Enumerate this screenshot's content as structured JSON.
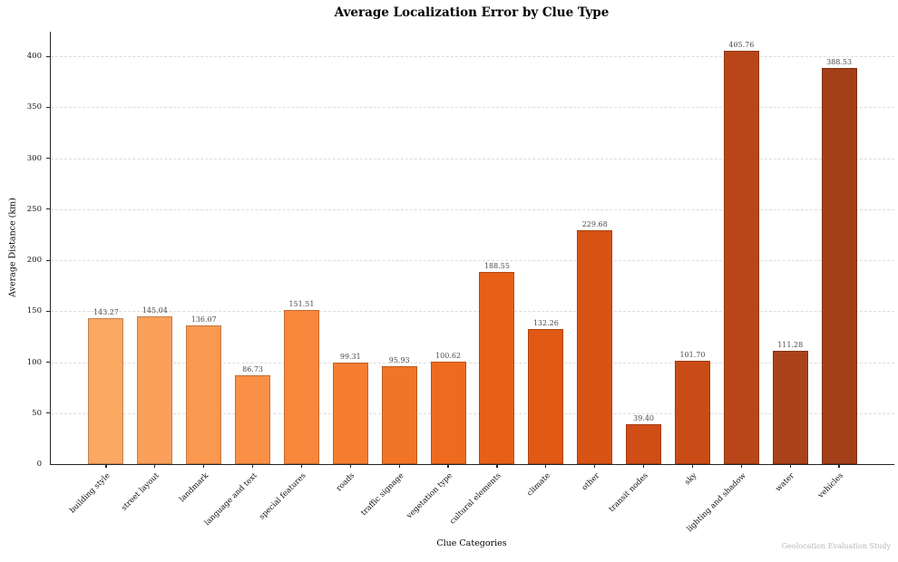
{
  "chart": {
    "title": "Average Localization Error by Clue Type",
    "x_axis_label": "Clue Categories",
    "y_axis_label": "Average Distance (km)",
    "footnote": "Geolocation Evaluation Study"
  },
  "chart_data": {
    "type": "bar",
    "title": "Average Localization Error by Clue Type",
    "xlabel": "Clue Categories",
    "ylabel": "Average Distance (km)",
    "categories": [
      "building style",
      "street layout",
      "landmark",
      "language and text",
      "special features",
      "roads",
      "traffic signage",
      "vegetation type",
      "cultural elements",
      "climate",
      "other",
      "transit nodes",
      "sky",
      "lighting and shadow",
      "water",
      "vehicles"
    ],
    "values": [
      143.27,
      145.04,
      136.07,
      86.73,
      151.51,
      99.31,
      95.93,
      100.62,
      188.55,
      132.26,
      229.68,
      39.4,
      101.7,
      405.76,
      111.28,
      388.53
    ],
    "value_label_decimals": 2,
    "bar_colors": [
      "#fba863",
      "#fba05a",
      "#fa9850",
      "#f99046",
      "#f8873c",
      "#f57e31",
      "#f27427",
      "#ee6a1e",
      "#e76018",
      "#e05915",
      "#d85214",
      "#d04d16",
      "#c94c17",
      "#b84618",
      "#ab4219",
      "#a33f19"
    ],
    "ylim": [
      0,
      424
    ],
    "yticks": [
      0,
      50,
      100,
      150,
      200,
      250,
      300,
      350,
      400
    ],
    "grid": "horizontal dashed",
    "legend": "none",
    "annotation": "Geolocation Evaluation Study"
  }
}
